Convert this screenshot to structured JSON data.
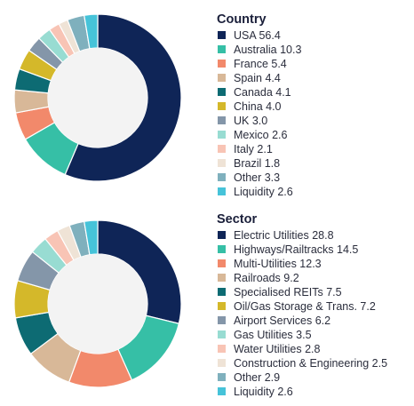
{
  "chart_data": [
    {
      "type": "pie",
      "title": "Country",
      "slices": [
        {
          "label": "USA 56.4",
          "value": 56.4,
          "color": "#0f2557"
        },
        {
          "label": "Australia 10.3",
          "value": 10.3,
          "color": "#36bfa6"
        },
        {
          "label": "France 5.4",
          "value": 5.4,
          "color": "#f2896b"
        },
        {
          "label": "Spain 4.4",
          "value": 4.4,
          "color": "#d8b898"
        },
        {
          "label": "Canada 4.1",
          "value": 4.1,
          "color": "#0d6b73"
        },
        {
          "label": "China 4.0",
          "value": 4.0,
          "color": "#d4b82a"
        },
        {
          "label": "UK 3.0",
          "value": 3.0,
          "color": "#8496a9"
        },
        {
          "label": "Mexico 2.6",
          "value": 2.6,
          "color": "#98dcd2"
        },
        {
          "label": "Italy 2.1",
          "value": 2.1,
          "color": "#f8c4b5"
        },
        {
          "label": "Brazil 1.8",
          "value": 1.8,
          "color": "#efe3d6"
        },
        {
          "label": "Other 3.3",
          "value": 3.3,
          "color": "#7fb0bd"
        },
        {
          "label": "Liquidity 2.6",
          "value": 2.6,
          "color": "#46c3d9"
        }
      ]
    },
    {
      "type": "pie",
      "title": "Sector",
      "slices": [
        {
          "label": "Electric Utilities 28.8",
          "value": 28.8,
          "color": "#0f2557"
        },
        {
          "label": "Highways/Railtracks 14.5",
          "value": 14.5,
          "color": "#36bfa6"
        },
        {
          "label": "Multi-Utilities 12.3",
          "value": 12.3,
          "color": "#f2896b"
        },
        {
          "label": "Railroads 9.2",
          "value": 9.2,
          "color": "#d8b898"
        },
        {
          "label": "Specialised REITs 7.5",
          "value": 7.5,
          "color": "#0d6b73"
        },
        {
          "label": "Oil/Gas Storage & Trans. 7.2",
          "value": 7.2,
          "color": "#d4b82a"
        },
        {
          "label": "Airport Services 6.2",
          "value": 6.2,
          "color": "#8496a9"
        },
        {
          "label": "Gas Utilities 3.5",
          "value": 3.5,
          "color": "#98dcd2"
        },
        {
          "label": "Water Utilities 2.8",
          "value": 2.8,
          "color": "#f8c4b5"
        },
        {
          "label": "Construction & Engineering 2.5",
          "value": 2.5,
          "color": "#efe3d6"
        },
        {
          "label": "Other 2.9",
          "value": 2.9,
          "color": "#7fb0bd"
        },
        {
          "label": "Liquidity 2.6",
          "value": 2.6,
          "color": "#46c3d9"
        }
      ]
    }
  ]
}
